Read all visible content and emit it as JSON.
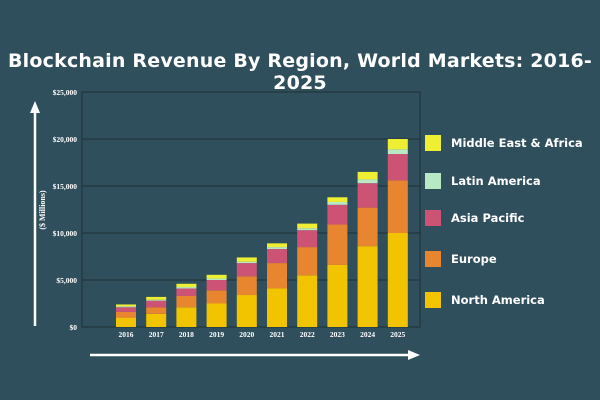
{
  "chart_data": {
    "type": "bar",
    "stacked": true,
    "title": "Blockchain Revenue By Region, World Markets: 2016-2025",
    "ylabel": "($ Millions)",
    "xlabel": "",
    "ylim": [
      0,
      25000
    ],
    "yticks": [
      "$0",
      "$5,000",
      "$10,000",
      "$15,000",
      "$20,000",
      "$25,000"
    ],
    "categories": [
      "2016",
      "2017",
      "2018",
      "2019",
      "2020",
      "2021",
      "2022",
      "2023",
      "2024",
      "2025"
    ],
    "series": [
      {
        "name": "North America",
        "color": "#f2c400",
        "values": [
          1000,
          1400,
          2100,
          2500,
          3400,
          4100,
          5500,
          6600,
          8600,
          10000
        ]
      },
      {
        "name": "Europe",
        "color": "#e8862f",
        "values": [
          600,
          700,
          1200,
          1400,
          2000,
          2700,
          3000,
          4300,
          4100,
          5600
        ]
      },
      {
        "name": "Asia Pacific",
        "color": "#cc5373",
        "values": [
          500,
          700,
          800,
          1100,
          1400,
          1500,
          1800,
          2100,
          2600,
          2800
        ]
      },
      {
        "name": "Latin America",
        "color": "#b8e8c4",
        "values": [
          100,
          100,
          150,
          150,
          150,
          200,
          200,
          300,
          400,
          500
        ]
      },
      {
        "name": "Middle East & Africa",
        "color": "#eeee33",
        "values": [
          200,
          300,
          350,
          400,
          450,
          400,
          500,
          500,
          800,
          1100
        ]
      }
    ],
    "legend_order": [
      "Middle East & Africa",
      "Latin America",
      "Asia Pacific",
      "Europe",
      "North America"
    ],
    "grid": true,
    "legend_position": "right"
  }
}
